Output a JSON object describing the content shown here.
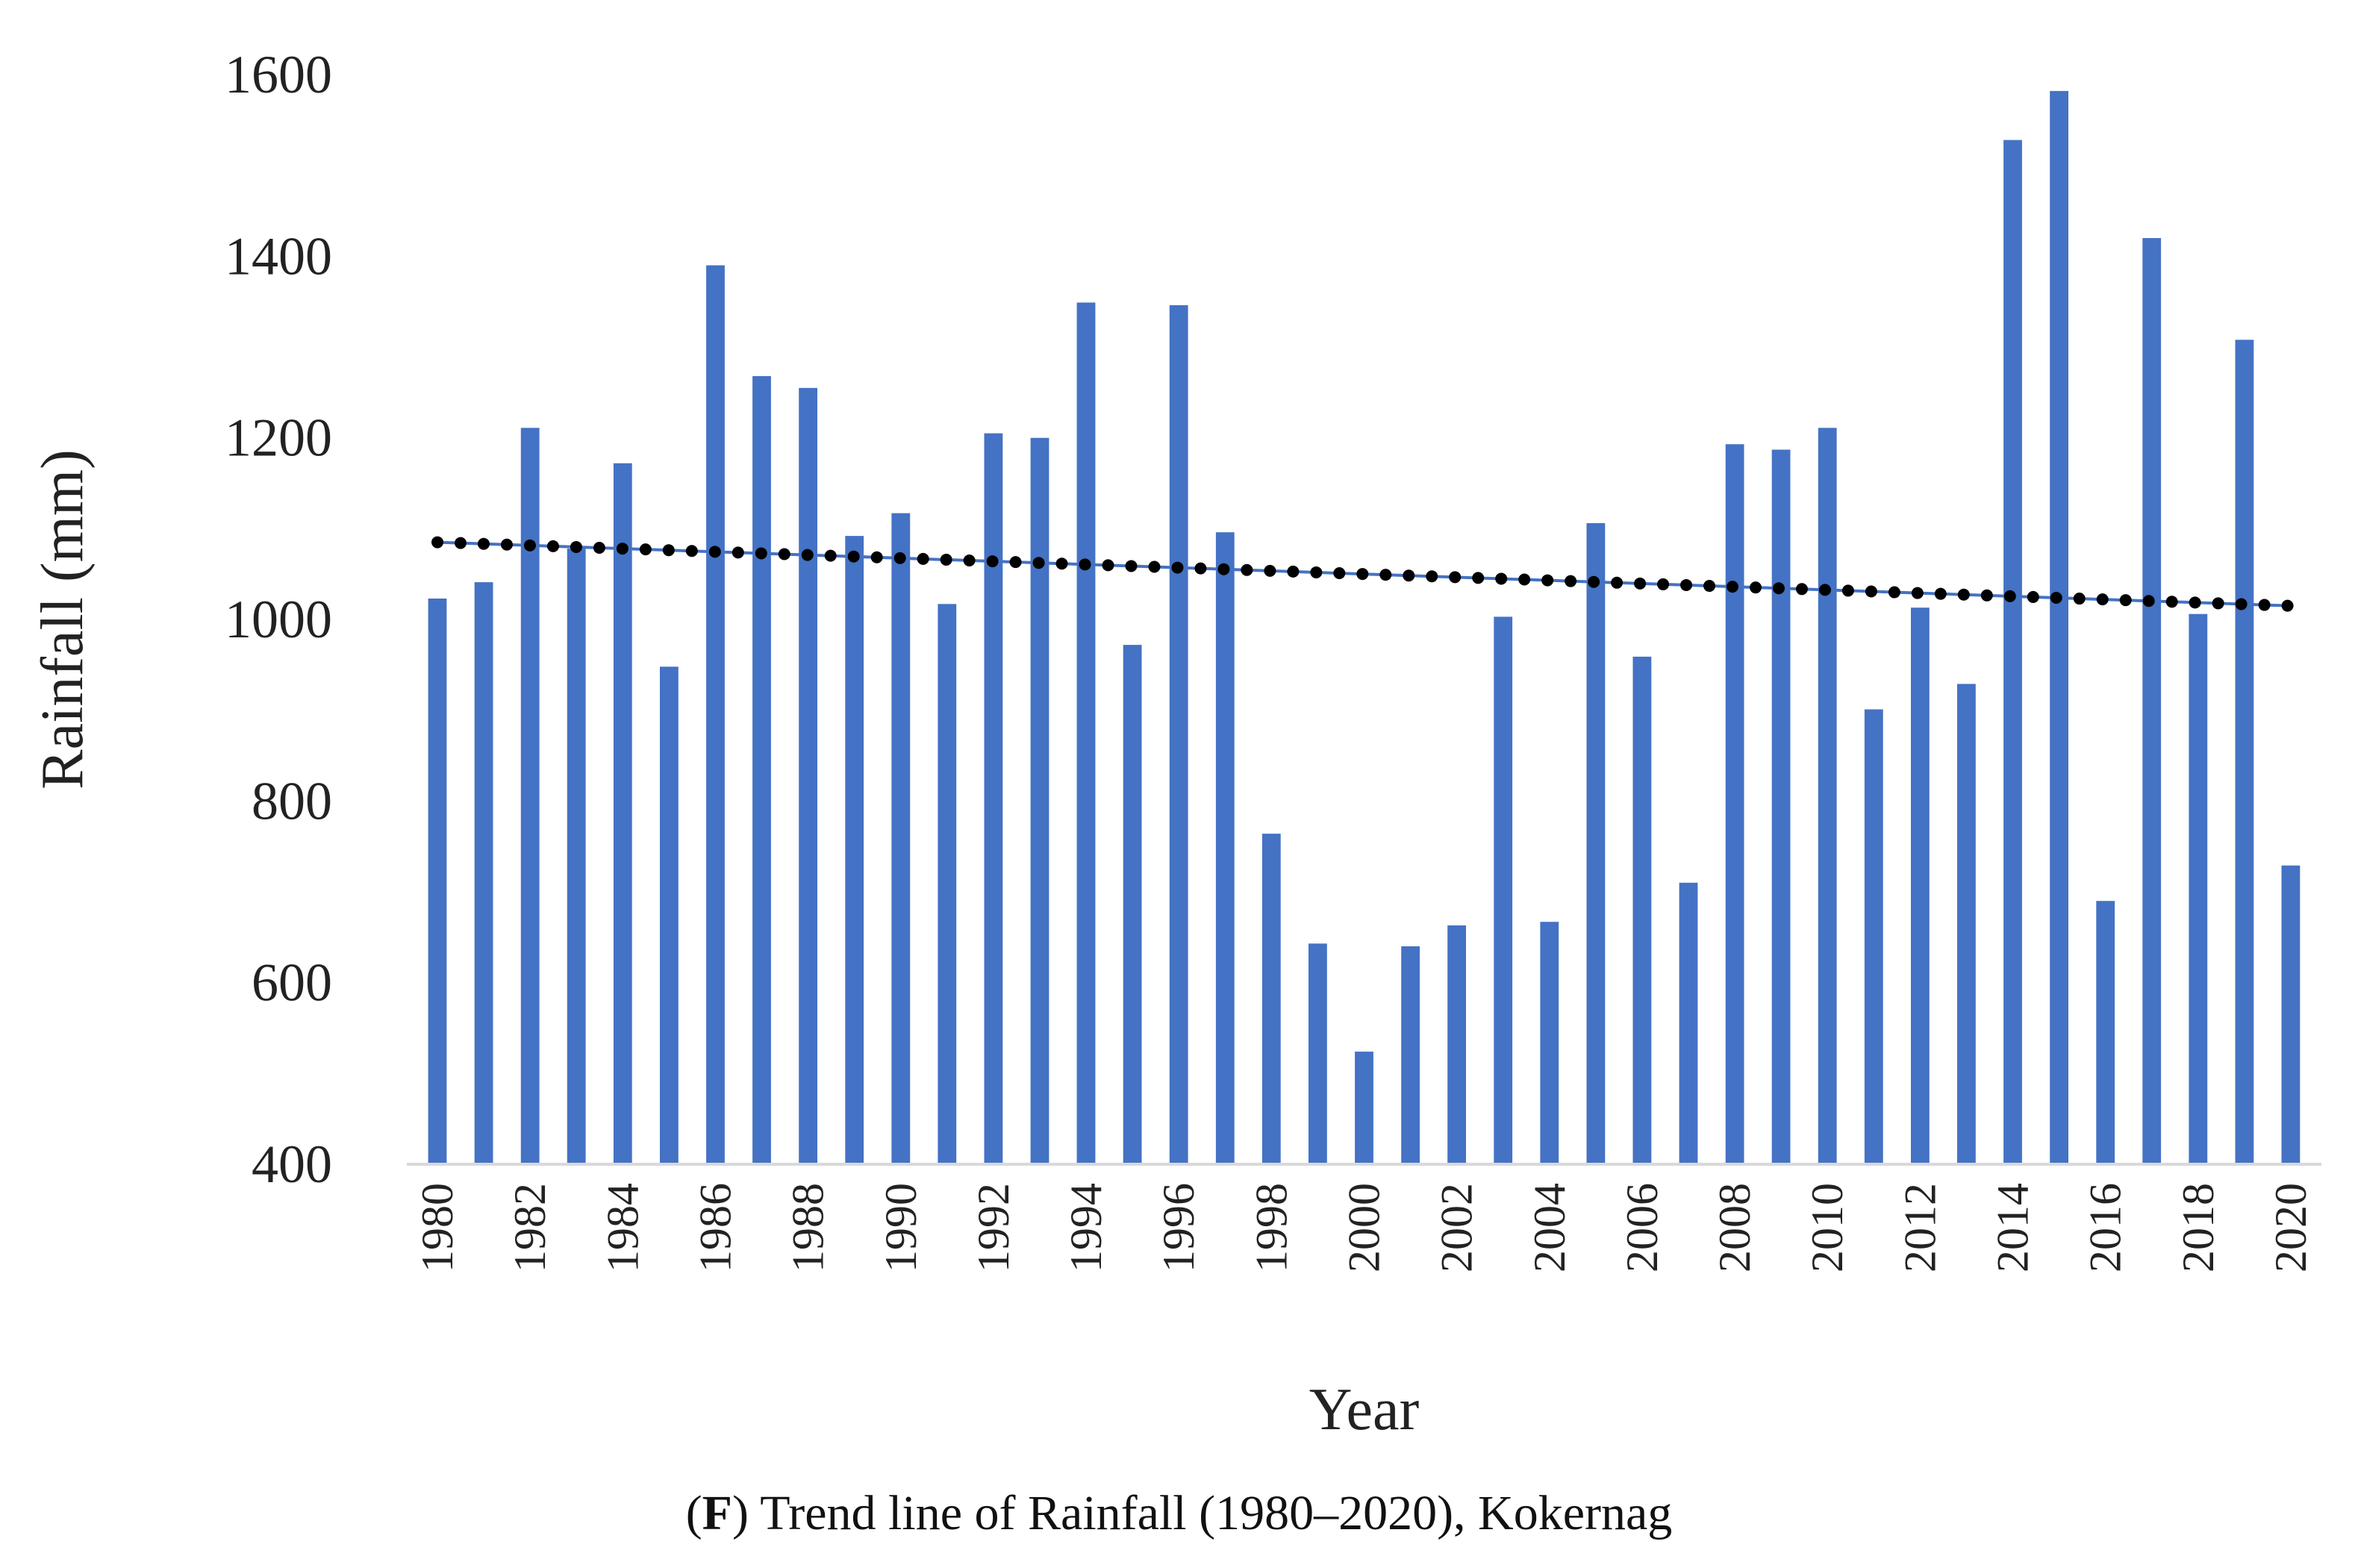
{
  "chart_data": {
    "type": "bar",
    "title": "",
    "xlabel": "Year",
    "ylabel": "Rainfall (mm)",
    "ylim": [
      400,
      1600
    ],
    "yticks": [
      400,
      600,
      800,
      1000,
      1200,
      1400,
      1600
    ],
    "grid": false,
    "bar_color": "#4472C4",
    "trend_color": "#000000",
    "categories": [
      "1980",
      "1981",
      "1982",
      "1983",
      "1984",
      "1985",
      "1986",
      "1987",
      "1988",
      "1989",
      "1990",
      "1991",
      "1992",
      "1993",
      "1994",
      "1995",
      "1996",
      "1997",
      "1998",
      "1999",
      "2000",
      "2001",
      "2002",
      "2003",
      "2004",
      "2005",
      "2006",
      "2007",
      "2008",
      "2009",
      "2010",
      "2011",
      "2012",
      "2013",
      "2014",
      "2015",
      "2016",
      "2017",
      "2018",
      "2019",
      "2020"
    ],
    "xtick_labels": [
      "1980",
      "1982",
      "1984",
      "1986",
      "1988",
      "1990",
      "1992",
      "1994",
      "1996",
      "1998",
      "2000",
      "2002",
      "2004",
      "2006",
      "2008",
      "2010",
      "2012",
      "2014",
      "2016",
      "2018",
      "2020"
    ],
    "values": [
      1023,
      1041,
      1211,
      1078,
      1172,
      948,
      1390,
      1268,
      1255,
      1092,
      1117,
      1017,
      1205,
      1200,
      1349,
      972,
      1346,
      1096,
      764,
      643,
      524,
      640,
      663,
      1003,
      667,
      1106,
      959,
      710,
      1193,
      1187,
      1211,
      901,
      1013,
      929,
      1528,
      1582,
      690,
      1420,
      1006,
      1308,
      729
    ],
    "trendline": {
      "type": "linear",
      "start": 1085,
      "end": 1015
    }
  },
  "caption": {
    "label": "F",
    "text": " Trend line of Rainfall (1980–2020), Kokernag",
    "paren_open": "(",
    "paren_close": ")"
  }
}
